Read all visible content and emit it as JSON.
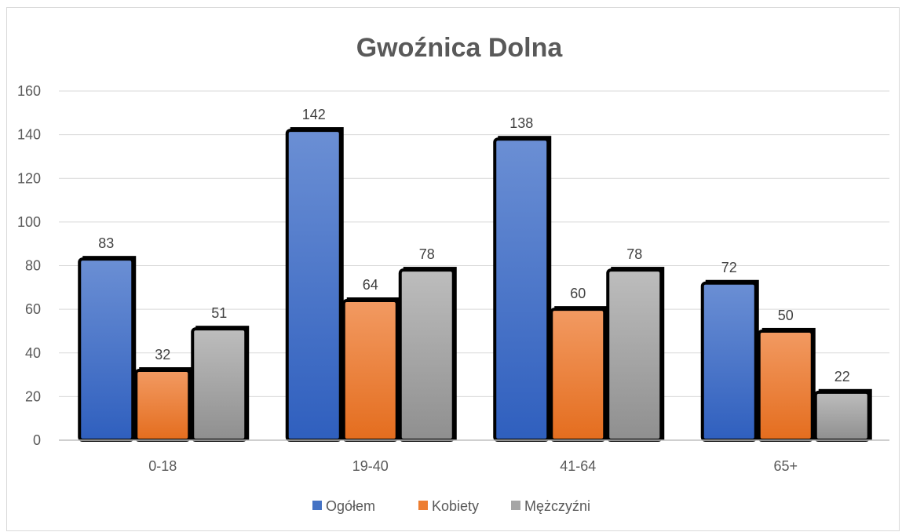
{
  "chart_data": {
    "type": "bar",
    "title": "Gwoźnica Dolna",
    "xlabel": "",
    "ylabel": "",
    "categories": [
      "0-18",
      "19-40",
      "41-64",
      "65+"
    ],
    "series": [
      {
        "name": "Ogółem",
        "values": [
          83,
          142,
          138,
          72
        ],
        "color": "#4472c4"
      },
      {
        "name": "Kobiety",
        "values": [
          32,
          64,
          60,
          50
        ],
        "color": "#ed7d31"
      },
      {
        "name": "Mężczyźni",
        "values": [
          51,
          78,
          78,
          22
        ],
        "color": "#a5a5a5"
      }
    ],
    "ylim": [
      0,
      160
    ],
    "yticks": [
      0,
      20,
      40,
      60,
      80,
      100,
      120,
      140,
      160
    ],
    "grid": true,
    "legend": "bottom"
  }
}
